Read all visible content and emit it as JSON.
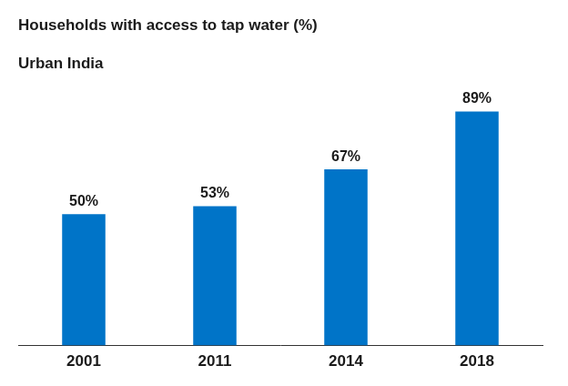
{
  "chart_data": {
    "type": "bar",
    "title": "Households with access to tap water (%)",
    "subtitle": "Urban India",
    "categories": [
      "2001",
      "2011",
      "2014",
      "2018"
    ],
    "values": [
      50,
      53,
      67,
      89
    ],
    "value_labels": [
      "50%",
      "53%",
      "67%",
      "89%"
    ],
    "data_labels": true,
    "color": "#0074c8",
    "ylim": [
      0,
      100
    ],
    "grid": false,
    "tick_labels": "x"
  }
}
